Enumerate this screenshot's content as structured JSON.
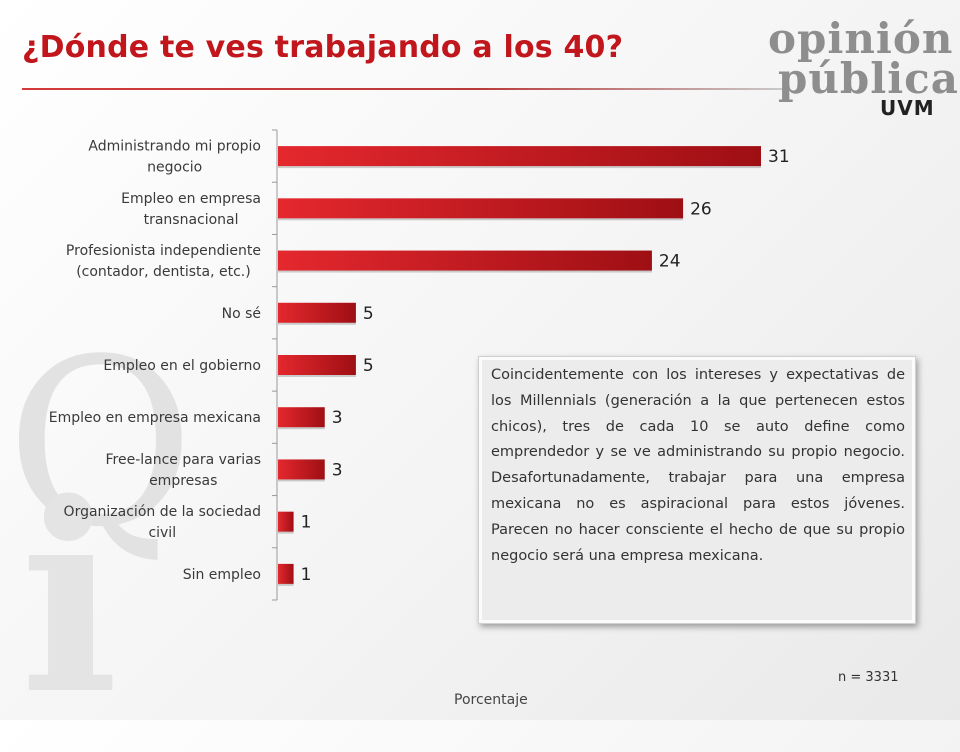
{
  "title": "¿Dónde te ves trabajando a los 40?",
  "logo": {
    "line1": "opinión",
    "line2": "pública",
    "line3": "UVM"
  },
  "chart_data": {
    "type": "bar",
    "orientation": "horizontal",
    "xlabel": "Porcentaje",
    "categories": [
      [
        "Administrando mi propio",
        "negocio"
      ],
      [
        "Empleo en empresa",
        "transnacional"
      ],
      [
        "Profesionista independiente",
        "(contador, dentista, etc.)"
      ],
      [
        "No sé"
      ],
      [
        "Empleo en el gobierno"
      ],
      [
        "Empleo en empresa mexicana"
      ],
      [
        "Free-lance para varias",
        "empresas"
      ],
      [
        "Organización de la sociedad",
        "civil"
      ],
      [
        "Sin empleo"
      ]
    ],
    "values": [
      31,
      26,
      24,
      5,
      5,
      3,
      3,
      1,
      1
    ],
    "xlim": [
      0,
      32
    ],
    "bar_color": "#c3161c",
    "grid": false,
    "legend": "none"
  },
  "note": "Coincidentemente con los intereses y expectativas de los Millennials (generación a la que pertenecen estos chicos), tres de cada 10 se auto define como emprendedor y se ve administrando su propio negocio. Desafortunadamente, trabajar para una empresa mexicana no es aspiracional para estos jóvenes. Parecen no hacer consciente el hecho de que su propio negocio será una empresa mexicana.",
  "sample_size": "n = 3331"
}
